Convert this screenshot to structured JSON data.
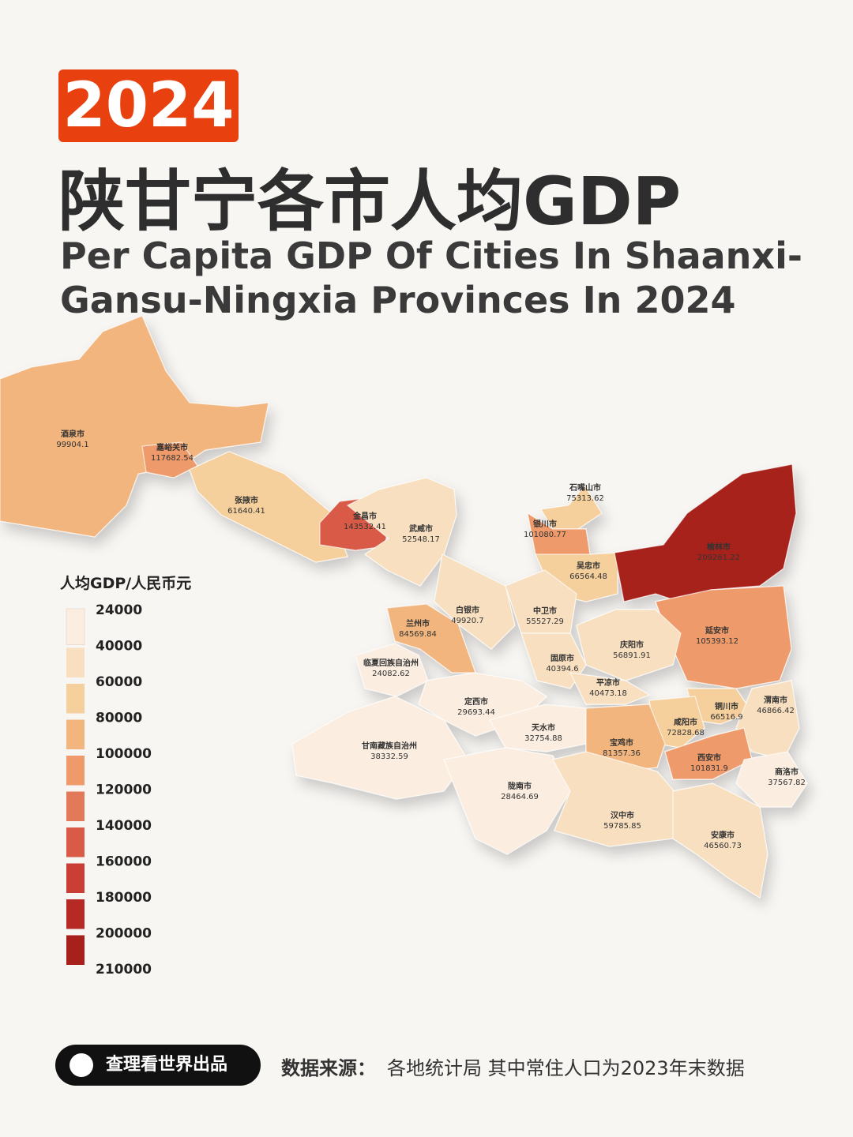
{
  "header": {
    "year": "2024",
    "title": "陕甘宁各市人均GDP",
    "subtitle_lines": [
      "Per Capita GDP Of Cities In Shaanxi-",
      "Gansu-Ningxia Provinces In 2024"
    ]
  },
  "legend": {
    "title": "人均GDP/人民币元",
    "ticks": [
      24000,
      40000,
      60000,
      80000,
      100000,
      120000,
      140000,
      160000,
      180000,
      200000,
      210000
    ],
    "colors": [
      "#fbeee0",
      "#f8dfbf",
      "#f5cf9c",
      "#f2b57e",
      "#ee9a6a",
      "#e27a5a",
      "#d85a47",
      "#c93e35",
      "#b52a24",
      "#a8201c"
    ]
  },
  "cities": [
    {
      "name": "酒泉市",
      "value": 99904.1
    },
    {
      "name": "嘉峪关市",
      "value": 117682.54
    },
    {
      "name": "张掖市",
      "value": 61640.41
    },
    {
      "name": "金昌市",
      "value": 143532.41
    },
    {
      "name": "武威市",
      "value": 52548.17
    },
    {
      "name": "石嘴山市",
      "value": 75313.62
    },
    {
      "name": "银川市",
      "value": 101080.77
    },
    {
      "name": "吴忠市",
      "value": 66564.48
    },
    {
      "name": "榆林市",
      "value": 209261.22
    },
    {
      "name": "白银市",
      "value": 49920.7
    },
    {
      "name": "中卫市",
      "value": 55527.29
    },
    {
      "name": "兰州市",
      "value": 84569.84
    },
    {
      "name": "临夏回族自治州",
      "value": 24082.62
    },
    {
      "name": "延安市",
      "value": 105393.12
    },
    {
      "name": "庆阳市",
      "value": 56891.91
    },
    {
      "name": "固原市",
      "value": 40394.6
    },
    {
      "name": "平凉市",
      "value": 40473.18
    },
    {
      "name": "定西市",
      "value": 29693.44
    },
    {
      "name": "铜川市",
      "value": 66516.9
    },
    {
      "name": "渭南市",
      "value": 46866.42
    },
    {
      "name": "天水市",
      "value": 32754.88
    },
    {
      "name": "咸阳市",
      "value": 72828.68
    },
    {
      "name": "宝鸡市",
      "value": 81357.36
    },
    {
      "name": "甘南藏族自治州",
      "value": 38332.59
    },
    {
      "name": "西安市",
      "value": 101831.9
    },
    {
      "name": "商洛市",
      "value": 37567.82
    },
    {
      "name": "陇南市",
      "value": 28464.69
    },
    {
      "name": "汉中市",
      "value": 59785.85
    },
    {
      "name": "安康市",
      "value": 46560.73
    }
  ],
  "footer": {
    "brand": "查理看世界出品",
    "source_label": "数据来源：",
    "source_text": "各地统计局  其中常住人口为2023年末数据"
  }
}
